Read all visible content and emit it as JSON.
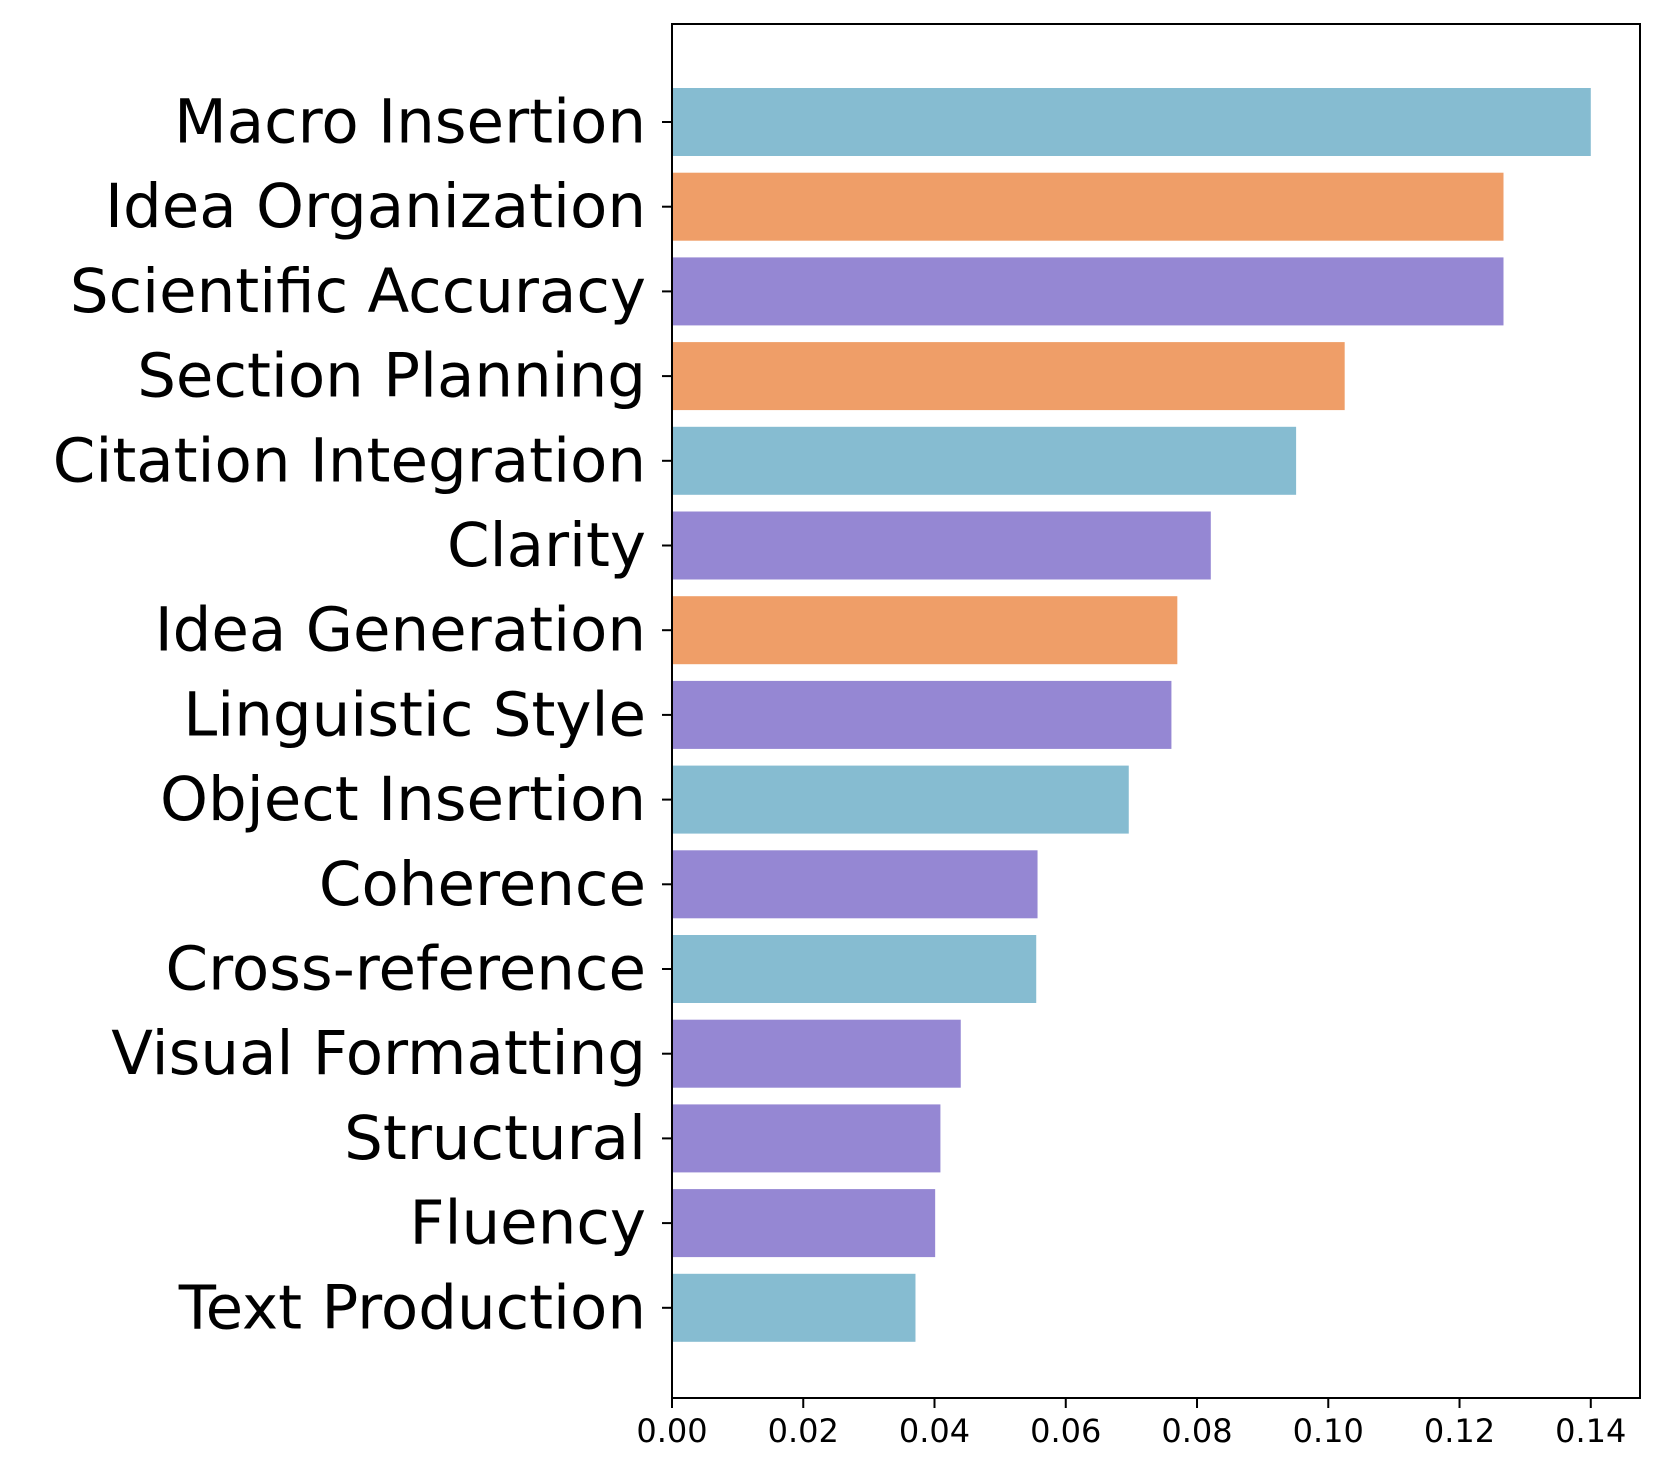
{
  "chart_data": {
    "type": "bar",
    "orientation": "horizontal",
    "categories": [
      "Macro Insertion",
      "Idea Organization",
      "Scientific Accuracy",
      "Section Planning",
      "Citation Integration",
      "Clarity",
      "Idea Generation",
      "Linguistic Style",
      "Object Insertion",
      "Coherence",
      "Cross-reference",
      "Visual Formatting",
      "Structural",
      "Fluency",
      "Text Production"
    ],
    "values": [
      0.14,
      0.1267,
      0.1267,
      0.1025,
      0.0951,
      0.0821,
      0.077,
      0.0761,
      0.0696,
      0.0557,
      0.0555,
      0.044,
      0.0409,
      0.0401,
      0.0371
    ],
    "bar_colors": [
      "#86bcd1",
      "#ef9e68",
      "#9587d3",
      "#ef9e68",
      "#86bcd1",
      "#9587d3",
      "#ef9e68",
      "#9587d3",
      "#86bcd1",
      "#9587d3",
      "#86bcd1",
      "#9587d3",
      "#9587d3",
      "#9587d3",
      "#86bcd1"
    ],
    "xlim": [
      0,
      0.1475
    ],
    "xticks": [
      0.0,
      0.02,
      0.04,
      0.06,
      0.08,
      0.1,
      0.12,
      0.14
    ],
    "xtick_labels": [
      "0.00",
      "0.02",
      "0.04",
      "0.06",
      "0.08",
      "0.10",
      "0.12",
      "0.14"
    ],
    "title": "",
    "xlabel": "",
    "ylabel": "",
    "grid": false
  }
}
